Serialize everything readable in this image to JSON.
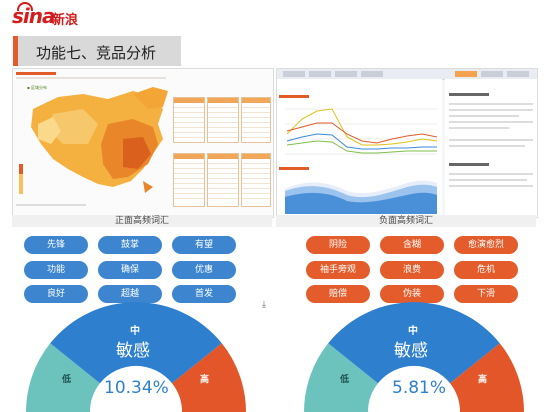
{
  "logo": {
    "text": "sina",
    "cn": "新浪"
  },
  "title": "功能七、竞品分析",
  "captions": {
    "left": "正面高频词汇",
    "right": "负面高频词汇"
  },
  "positive_words": [
    "先锋",
    "鼓掌",
    "有望",
    "功能",
    "确保",
    "优惠",
    "良好",
    "超越",
    "首发"
  ],
  "negative_words": [
    "阴险",
    "含糊",
    "愈演愈烈",
    "袖手旁观",
    "浪费",
    "危机",
    "赔偿",
    "伪装",
    "下滑"
  ],
  "gauges": [
    {
      "top_label": "中",
      "center_label": "敏感",
      "left_label": "低",
      "right_label": "高",
      "value": "10.34%"
    },
    {
      "top_label": "中",
      "center_label": "敏感",
      "left_label": "低",
      "right_label": "高",
      "value": "5.81%"
    }
  ],
  "colors": {
    "blue": "#3d86cf",
    "orange": "#e45c2b",
    "teal": "#6cc3bd",
    "gauge_blue": "#2f7fcf",
    "gauge_orange": "#e2562a"
  }
}
